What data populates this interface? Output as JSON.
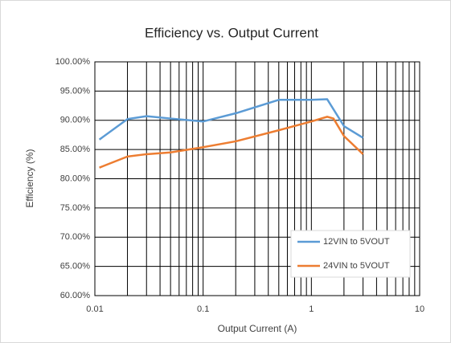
{
  "chart_data": {
    "type": "line",
    "title": "Efficiency vs. Output Current",
    "x_label": "Output Current (A)",
    "y_label": "Efficiency (%)",
    "x_log": true,
    "grid": true,
    "legend_position": "lower right",
    "xlim": [
      0.01,
      10
    ],
    "xticks": [
      0.01,
      0.1,
      1,
      10
    ],
    "ylim": [
      60,
      100
    ],
    "yticks": [
      {
        "value": 60,
        "label": "60.00%"
      },
      {
        "value": 65,
        "label": "65.00%"
      },
      {
        "value": 70,
        "label": "70.00%"
      },
      {
        "value": 75,
        "label": "75.00%"
      },
      {
        "value": 80,
        "label": "80.00%"
      },
      {
        "value": 85,
        "label": "85.00%"
      },
      {
        "value": 90,
        "label": "90.00%"
      },
      {
        "value": 95,
        "label": "95.00%"
      },
      {
        "value": 100,
        "label": "100.00%"
      }
    ],
    "series": [
      {
        "name": "12VIN to 5VOUT",
        "color": "#5b9bd5",
        "x": [
          0.011,
          0.02,
          0.03,
          0.05,
          0.1,
          0.2,
          0.5,
          1,
          1.4,
          2,
          3
        ],
        "values": [
          86.7,
          90.2,
          90.7,
          90.3,
          89.8,
          91.2,
          93.5,
          93.5,
          93.6,
          89.0,
          87.0
        ]
      },
      {
        "name": "24VIN to 5VOUT",
        "color": "#ed7d31",
        "x": [
          0.011,
          0.02,
          0.03,
          0.05,
          0.1,
          0.2,
          0.5,
          1,
          1.4,
          1.6,
          2,
          3
        ],
        "values": [
          81.9,
          83.8,
          84.2,
          84.5,
          85.4,
          86.4,
          88.3,
          89.8,
          90.6,
          90.3,
          87.3,
          84.2
        ]
      }
    ]
  }
}
